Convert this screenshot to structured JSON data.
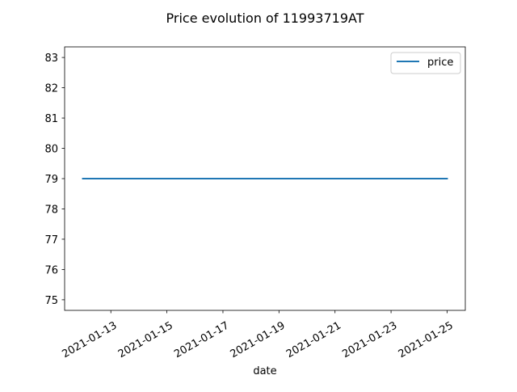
{
  "chart_data": {
    "type": "line",
    "title": "Price evolution of 11993719AT",
    "xlabel": "date",
    "ylabel": "",
    "x": [
      "2021-01-12",
      "2021-01-25"
    ],
    "series": [
      {
        "name": "price",
        "x": [
          "2021-01-12",
          "2021-01-25"
        ],
        "values": [
          79,
          79
        ]
      }
    ],
    "xticks": [
      "2021-01-13",
      "2021-01-15",
      "2021-01-17",
      "2021-01-19",
      "2021-01-21",
      "2021-01-23",
      "2021-01-25"
    ],
    "yticks": [
      75,
      76,
      77,
      78,
      79,
      80,
      81,
      82,
      83
    ],
    "xlim": [
      "2021-01-11.35",
      "2021-01-25.65"
    ],
    "ylim": [
      74.65,
      83.35
    ],
    "grid": false,
    "legend": "top-right",
    "colors": {
      "price": "#1f77b4"
    }
  }
}
